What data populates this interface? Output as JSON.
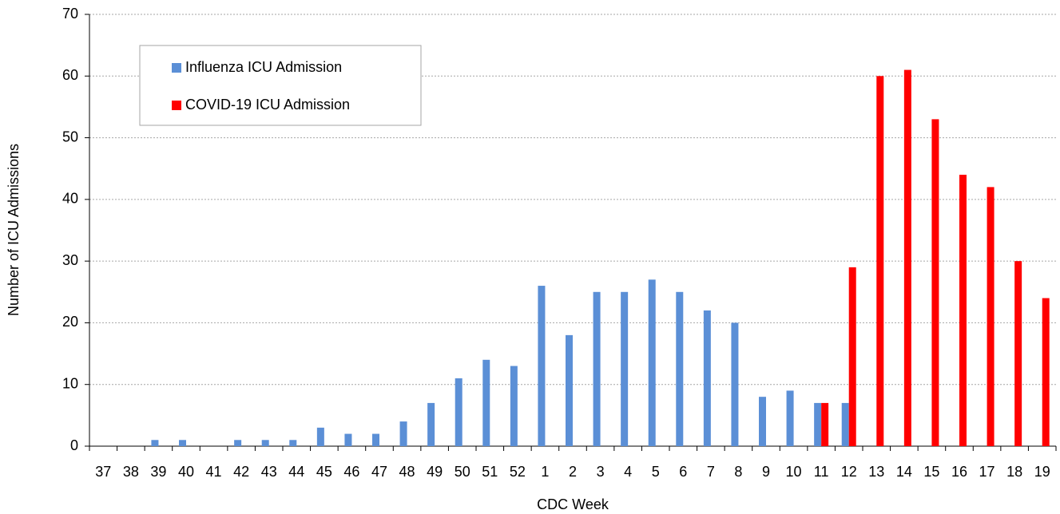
{
  "chart_data": {
    "type": "bar",
    "x_label": "CDC Week",
    "y_label": "Number of ICU Admissions",
    "categories": [
      "37",
      "38",
      "39",
      "40",
      "41",
      "42",
      "43",
      "44",
      "45",
      "46",
      "47",
      "48",
      "49",
      "50",
      "51",
      "52",
      "1",
      "2",
      "3",
      "4",
      "5",
      "6",
      "7",
      "8",
      "9",
      "10",
      "11",
      "12",
      "13",
      "14",
      "15",
      "16",
      "17",
      "18",
      "19"
    ],
    "series": [
      {
        "name": "Influenza ICU Admission",
        "color": "#5b8fd6",
        "values": [
          0,
          0,
          1,
          1,
          0,
          1,
          1,
          1,
          3,
          2,
          2,
          4,
          7,
          11,
          14,
          13,
          26,
          18,
          25,
          25,
          27,
          25,
          22,
          20,
          8,
          9,
          7,
          7,
          null,
          null,
          null,
          null,
          null,
          null,
          null
        ]
      },
      {
        "name": "COVID-19 ICU Admission",
        "color": "#ff0000",
        "values": [
          null,
          null,
          null,
          null,
          null,
          null,
          null,
          null,
          null,
          null,
          null,
          null,
          null,
          null,
          null,
          null,
          null,
          null,
          null,
          null,
          null,
          null,
          null,
          null,
          null,
          null,
          7,
          29,
          60,
          61,
          53,
          44,
          42,
          30,
          24
        ]
      }
    ],
    "ylim": [
      0,
      70
    ],
    "yticks": [
      0,
      10,
      20,
      30,
      40,
      50,
      60,
      70
    ],
    "grid": true,
    "legend": "top-left"
  }
}
